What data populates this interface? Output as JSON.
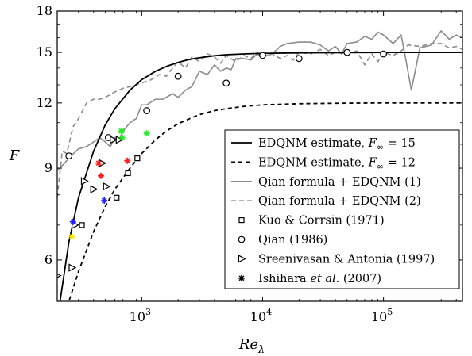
{
  "chart_data": {
    "type": "line",
    "xlabel": "Re",
    "xlabel_sub": "λ",
    "ylabel": "F",
    "x_scale": "log",
    "y_scale": "log",
    "xlim": [
      200,
      450000
    ],
    "ylim": [
      5,
      18
    ],
    "yticks": [
      6,
      9,
      12,
      15,
      18
    ],
    "xticks": [
      1000,
      10000,
      100000
    ],
    "xtick_labels": [
      {
        "base": "10",
        "exp": "3"
      },
      {
        "base": "10",
        "exp": "4"
      },
      {
        "base": "10",
        "exp": "5"
      }
    ],
    "grid": false,
    "legend_position": "right-center",
    "legend": [
      {
        "key": "edqnm15",
        "pre": "EDQNM estimate, ",
        "math": "F",
        "sub": "∞",
        "post": " = 15"
      },
      {
        "key": "edqnm12",
        "pre": "EDQNM estimate, ",
        "math": "F",
        "sub": "∞",
        "post": " = 12"
      },
      {
        "key": "qian1",
        "pre": "Qian formula + EDQNM (1)"
      },
      {
        "key": "qian2",
        "pre": "Qian formula + EDQNM (2)"
      },
      {
        "key": "kuo",
        "pre": "Kuo & Corrsin (1971)"
      },
      {
        "key": "qian",
        "pre": "Qian (1986)"
      },
      {
        "key": "sreeni",
        "pre": "Sreenivasan & Antonia (1997)"
      },
      {
        "key": "ishihara",
        "pre": "Ishihara ",
        "italic": "et al.",
        "post": " (2007)"
      }
    ],
    "series": [
      {
        "key": "edqnm15",
        "style": "solid",
        "color": "#000000",
        "f_inf": 15,
        "x": [
          200,
          250,
          300,
          400,
          500,
          600,
          800,
          1000,
          1300,
          1600,
          2000,
          2500,
          3000,
          4000,
          5000,
          7000,
          10000,
          20000,
          50000,
          100000,
          450000
        ],
        "y": [
          4.6,
          6.5,
          7.9,
          9.7,
          10.9,
          11.7,
          12.7,
          13.3,
          13.8,
          14.1,
          14.35,
          14.55,
          14.65,
          14.78,
          14.85,
          14.9,
          14.94,
          14.97,
          14.99,
          15.0,
          15.0
        ]
      },
      {
        "key": "edqnm12",
        "style": "dashed",
        "color": "#000000",
        "f_inf": 12,
        "x": [
          220,
          250,
          300,
          400,
          500,
          600,
          800,
          1000,
          1300,
          1600,
          2000,
          2500,
          3000,
          4000,
          5000,
          7000,
          10000,
          20000,
          50000,
          100000,
          450000
        ],
        "y": [
          4.6,
          5.0,
          5.7,
          6.8,
          7.6,
          8.2,
          9.0,
          9.6,
          10.2,
          10.6,
          10.95,
          11.2,
          11.4,
          11.6,
          11.7,
          11.82,
          11.9,
          11.96,
          11.99,
          12.0,
          12.0
        ]
      },
      {
        "key": "qian1",
        "style": "solid",
        "color": "#8c8c8c",
        "x": [
          200,
          230,
          260,
          300,
          350,
          400,
          450,
          500,
          550,
          600,
          650,
          700,
          800,
          900,
          1000,
          1100,
          1300,
          1500,
          1800,
          2000,
          2300,
          2600,
          3000,
          3500,
          4000,
          4500,
          5000,
          5500,
          6000,
          7000,
          8000,
          9000,
          10000,
          12000,
          14000,
          16000,
          20000,
          25000,
          30000,
          35000,
          40000,
          45000,
          50000,
          60000,
          70000,
          80000,
          90000,
          100000,
          120000,
          140000,
          150000,
          170000,
          200000,
          250000,
          300000,
          350000,
          400000,
          450000
        ],
        "y": [
          8.9,
          9.2,
          9.5,
          9.8,
          9.9,
          10.1,
          10.3,
          10.1,
          9.9,
          10.3,
          10.2,
          10.6,
          11.0,
          11.2,
          11.9,
          11.9,
          12.2,
          12.2,
          12.5,
          12.3,
          12.7,
          12.9,
          13.8,
          13.6,
          14.2,
          13.8,
          14.0,
          13.9,
          14.6,
          14.6,
          14.5,
          14.9,
          14.7,
          14.9,
          15.4,
          15.6,
          15.7,
          15.7,
          15.5,
          15.1,
          15.4,
          14.9,
          15.6,
          15.7,
          16.1,
          15.9,
          16.4,
          16.2,
          15.6,
          16.2,
          14.9,
          12.7,
          15.3,
          15.5,
          16.5,
          15.9,
          16.2,
          16.0
        ],
        "note": "gray solid fluctuating curve"
      },
      {
        "key": "qian2",
        "style": "dashed",
        "color": "#8c8c8c",
        "x": [
          200,
          220,
          240,
          270,
          300,
          350,
          400,
          450,
          500,
          600,
          700,
          800,
          1000,
          1200,
          1400,
          1600,
          1800,
          2000,
          2300,
          2600,
          3000,
          3500,
          4000,
          4500,
          5000,
          6000,
          7000,
          8000,
          9000,
          10000,
          12000,
          14000,
          16000,
          18000,
          20000,
          25000,
          30000,
          35000,
          40000,
          50000,
          60000,
          70000,
          80000,
          90000,
          100000,
          120000,
          140000,
          160000,
          200000,
          250000,
          300000,
          350000,
          400000,
          450000
        ],
        "y": [
          7.9,
          9.7,
          9.6,
          10.8,
          11.2,
          12.0,
          12.2,
          12.2,
          12.3,
          12.6,
          12.8,
          12.9,
          13.1,
          13.3,
          13.6,
          13.5,
          14.0,
          14.4,
          14.0,
          14.7,
          14.4,
          14.9,
          14.7,
          14.3,
          14.8,
          14.4,
          14.8,
          14.6,
          15.0,
          14.7,
          14.9,
          14.6,
          14.8,
          14.5,
          15.0,
          14.9,
          15.2,
          14.8,
          15.0,
          14.9,
          15.1,
          14.2,
          14.9,
          14.4,
          15.0,
          14.8,
          15.1,
          15.5,
          15.4,
          15.6,
          15.6,
          15.3,
          15.4,
          15.2
        ],
        "note": "gray dashed fluctuating curve"
      }
    ],
    "scatter": [
      {
        "key": "kuo",
        "marker": "square",
        "color": "#000000",
        "points": [
          [
            320,
            7.0
          ],
          [
            620,
            7.9
          ],
          [
            770,
            8.8
          ],
          [
            920,
            9.4
          ]
        ]
      },
      {
        "key": "qian",
        "marker": "circle",
        "color": "#000000",
        "points": [
          [
            250,
            9.5
          ],
          [
            530,
            10.3
          ],
          [
            1100,
            11.6
          ],
          [
            2000,
            13.5
          ],
          [
            5000,
            13.1
          ],
          [
            10000,
            14.8
          ],
          [
            20000,
            14.6
          ],
          [
            50000,
            15.0
          ],
          [
            100000,
            14.9
          ]
        ]
      },
      {
        "key": "sreeni",
        "marker": "triangle-right",
        "color": "#000000",
        "points": [
          [
            200,
            5.6
          ],
          [
            265,
            5.8
          ],
          [
            280,
            7.0
          ],
          [
            335,
            8.5
          ],
          [
            400,
            8.2
          ],
          [
            470,
            9.2
          ],
          [
            510,
            8.3
          ],
          [
            580,
            10.2
          ],
          [
            650,
            10.2
          ]
        ]
      },
      {
        "key": "ishihara",
        "marker": "asterisk",
        "color": "mixed",
        "points": [
          {
            "x": 270,
            "y": 7.1,
            "color": "#1f1fff"
          },
          {
            "x": 265,
            "y": 6.65,
            "color": "#ffee00"
          },
          {
            "x": 440,
            "y": 9.2,
            "color": "#ff1f1f"
          },
          {
            "x": 460,
            "y": 8.7,
            "color": "#ff1f1f"
          },
          {
            "x": 490,
            "y": 7.8,
            "color": "#1f1fff"
          },
          {
            "x": 680,
            "y": 10.6,
            "color": "#22ee22"
          },
          {
            "x": 690,
            "y": 10.3,
            "color": "#22ee22"
          },
          {
            "x": 760,
            "y": 9.3,
            "color": "#ff1f1f"
          },
          {
            "x": 1100,
            "y": 10.5,
            "color": "#22ee22"
          }
        ]
      }
    ]
  }
}
